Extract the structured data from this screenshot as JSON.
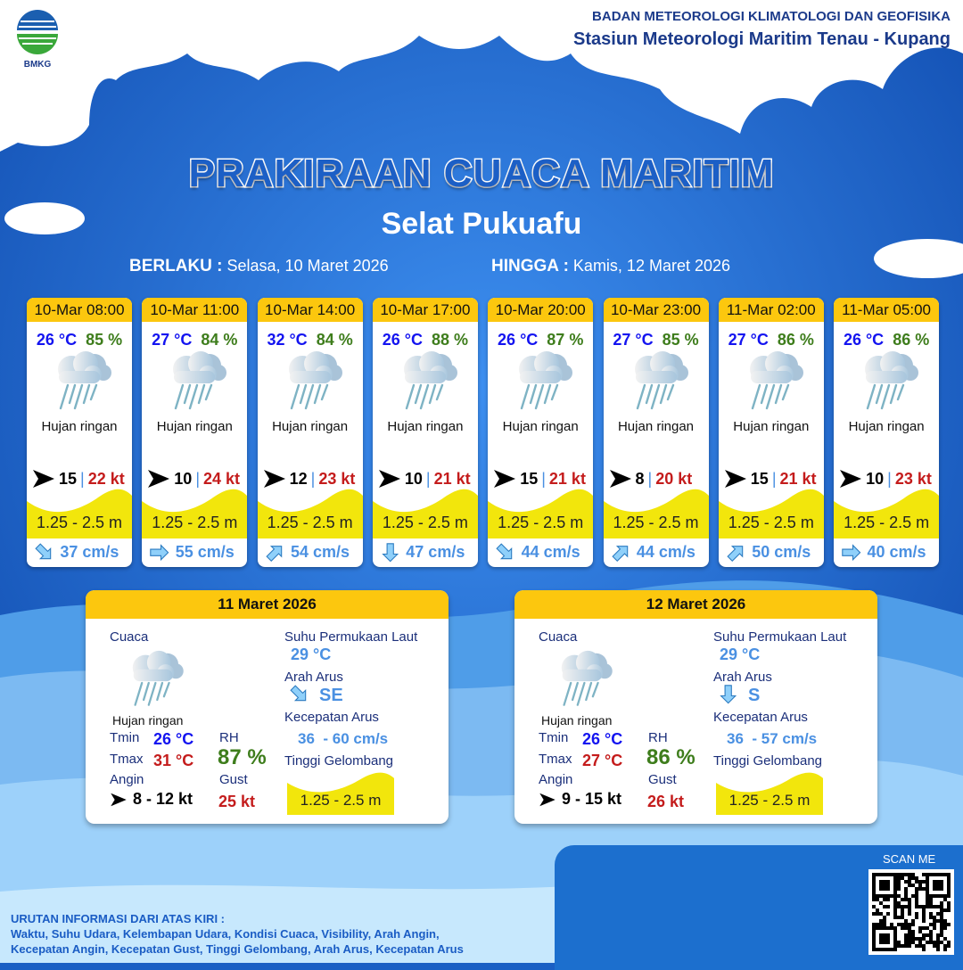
{
  "header": {
    "agency": "BADAN METEOROLOGI KLIMATOLOGI DAN GEOFISIKA",
    "station": "Stasiun Meteorologi Maritim Tenau - Kupang",
    "logo_text": "BMKG"
  },
  "title": "PRAKIRAAN CUACA MARITIM",
  "location": "Selat Pukuafu",
  "validity": {
    "from_label": "BERLAKU :",
    "from": "Selasa, 10 Maret 2026",
    "to_label": "HINGGA :",
    "to": "Kamis, 12 Maret 2026"
  },
  "colors": {
    "accent_yellow": "#fcc70e",
    "wave_yellow": "#f2e60c",
    "temp": "#1414f0",
    "humidity": "#3e7d1c",
    "gust": "#c41c1c",
    "current": "#4a90e2"
  },
  "forecasts": [
    {
      "time": "10-Mar 08:00",
      "temp": "26 °C",
      "rh": "85 %",
      "weather": "Hujan ringan",
      "weather_icon": "cloud-rain-icon",
      "wind_dir": "E",
      "wind": "15",
      "gust": "22 kt",
      "wave": "1.25 - 2.5 m",
      "current_dir": "SE",
      "current": "37 cm/s"
    },
    {
      "time": "10-Mar 11:00",
      "temp": "27 °C",
      "rh": "84 %",
      "weather": "Hujan ringan",
      "weather_icon": "cloud-rain-icon",
      "wind_dir": "E",
      "wind": "10",
      "gust": "24 kt",
      "wave": "1.25 - 2.5 m",
      "current_dir": "E",
      "current": "55 cm/s"
    },
    {
      "time": "10-Mar 14:00",
      "temp": "32 °C",
      "rh": "84 %",
      "weather": "Hujan ringan",
      "weather_icon": "cloud-rain-icon",
      "wind_dir": "E",
      "wind": "12",
      "gust": "23 kt",
      "wave": "1.25 - 2.5 m",
      "current_dir": "NE",
      "current": "54 cm/s"
    },
    {
      "time": "10-Mar 17:00",
      "temp": "26 °C",
      "rh": "88 %",
      "weather": "Hujan ringan",
      "weather_icon": "cloud-rain-icon",
      "wind_dir": "E",
      "wind": "10",
      "gust": "21 kt",
      "wave": "1.25 - 2.5 m",
      "current_dir": "S",
      "current": "47 cm/s"
    },
    {
      "time": "10-Mar 20:00",
      "temp": "26 °C",
      "rh": "87 %",
      "weather": "Hujan ringan",
      "weather_icon": "cloud-rain-icon",
      "wind_dir": "E",
      "wind": "15",
      "gust": "21 kt",
      "wave": "1.25 - 2.5 m",
      "current_dir": "SE",
      "current": "44 cm/s"
    },
    {
      "time": "10-Mar 23:00",
      "temp": "27 °C",
      "rh": "85 %",
      "weather": "Hujan ringan",
      "weather_icon": "cloud-rain-icon",
      "wind_dir": "E",
      "wind": "8",
      "gust": "20 kt",
      "wave": "1.25 - 2.5 m",
      "current_dir": "NE",
      "current": "44 cm/s"
    },
    {
      "time": "11-Mar 02:00",
      "temp": "27 °C",
      "rh": "86 %",
      "weather": "Hujan ringan",
      "weather_icon": "cloud-rain-icon",
      "wind_dir": "E",
      "wind": "15",
      "gust": "21 kt",
      "wave": "1.25 - 2.5 m",
      "current_dir": "NE",
      "current": "50 cm/s"
    },
    {
      "time": "11-Mar 05:00",
      "temp": "26 °C",
      "rh": "86 %",
      "weather": "Hujan ringan",
      "weather_icon": "cloud-rain-icon",
      "wind_dir": "E",
      "wind": "10",
      "gust": "23 kt",
      "wave": "1.25 - 2.5 m",
      "current_dir": "E",
      "current": "40 cm/s"
    }
  ],
  "labels": {
    "cuaca": "Cuaca",
    "sst": "Suhu Permukaan Laut",
    "arah_arus": "Arah Arus",
    "kec_arus": "Kecepatan Arus",
    "tinggi": "Tinggi Gelombang",
    "tmin": "Tmin",
    "tmax": "Tmax",
    "rh": "RH",
    "angin": "Angin",
    "gust": "Gust"
  },
  "daily": [
    {
      "date": "11 Maret 2026",
      "weather": "Hujan ringan",
      "tmin": "26 °C",
      "tmax": "31 °C",
      "rh": "87 %",
      "wind": "8  - 12 kt",
      "gust": "25 kt",
      "sst": "29 °C",
      "current_dir": "SE",
      "current": "36  - 60 cm/s",
      "wave": "1.25 - 2.5 m"
    },
    {
      "date": "12 Maret 2026",
      "weather": "Hujan ringan",
      "tmin": "26 °C",
      "tmax": "27 °C",
      "rh": "86 %",
      "wind": "9  - 15 kt",
      "gust": "26 kt",
      "sst": "29 °C",
      "current_dir": "S",
      "current": "36  - 57 cm/s",
      "wave": "1.25 - 2.5 m"
    }
  ],
  "footer": {
    "heading": "URUTAN INFORMASI DARI ATAS KIRI :",
    "line1": "Waktu, Suhu Udara, Kelembapan Udara, Kondisi Cuaca, Visibility, Arah Angin,",
    "line2": "Kecepatan Angin, Kecepatan Gust, Tinggi Gelombang, Arah Arus, Kecepatan Arus",
    "scan": "SCAN ME"
  }
}
